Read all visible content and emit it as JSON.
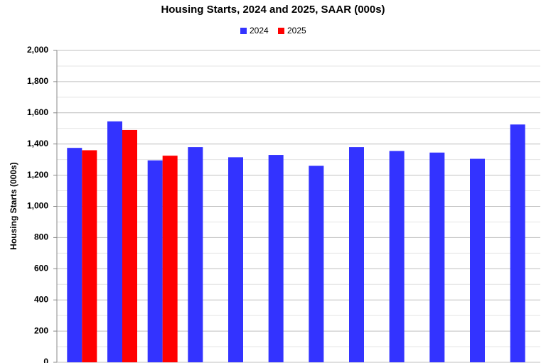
{
  "chart_data": {
    "type": "bar",
    "title": "Housing Starts,  2024 and 2025, SAAR (000s)",
    "y_label": "Housing Starts (000s)",
    "categories": [
      null,
      null,
      null,
      null,
      null,
      null,
      null,
      null,
      null,
      null,
      null,
      null
    ],
    "series": [
      {
        "name": "2024",
        "color": "#3333ff",
        "values": [
          1375,
          1545,
          1295,
          1380,
          1315,
          1330,
          1260,
          1380,
          1355,
          1345,
          1305,
          1525
        ]
      },
      {
        "name": "2025",
        "color": "#ff0000",
        "values": [
          1360,
          1490,
          1325,
          null,
          null,
          null,
          null,
          null,
          null,
          null,
          null,
          null
        ]
      }
    ],
    "ylim": [
      0,
      2000
    ],
    "yticks": [
      0,
      200,
      400,
      600,
      800,
      {
        "value": 1000,
        "label": "1,000"
      },
      {
        "value": 1200,
        "label": "1,200"
      },
      {
        "value": 1400,
        "label": "1,400"
      },
      {
        "value": 1600,
        "label": "1,600"
      },
      {
        "value": 1800,
        "label": "1,800"
      },
      {
        "value": 2000,
        "label": "2,000"
      }
    ],
    "grid": true,
    "legend": "top"
  }
}
